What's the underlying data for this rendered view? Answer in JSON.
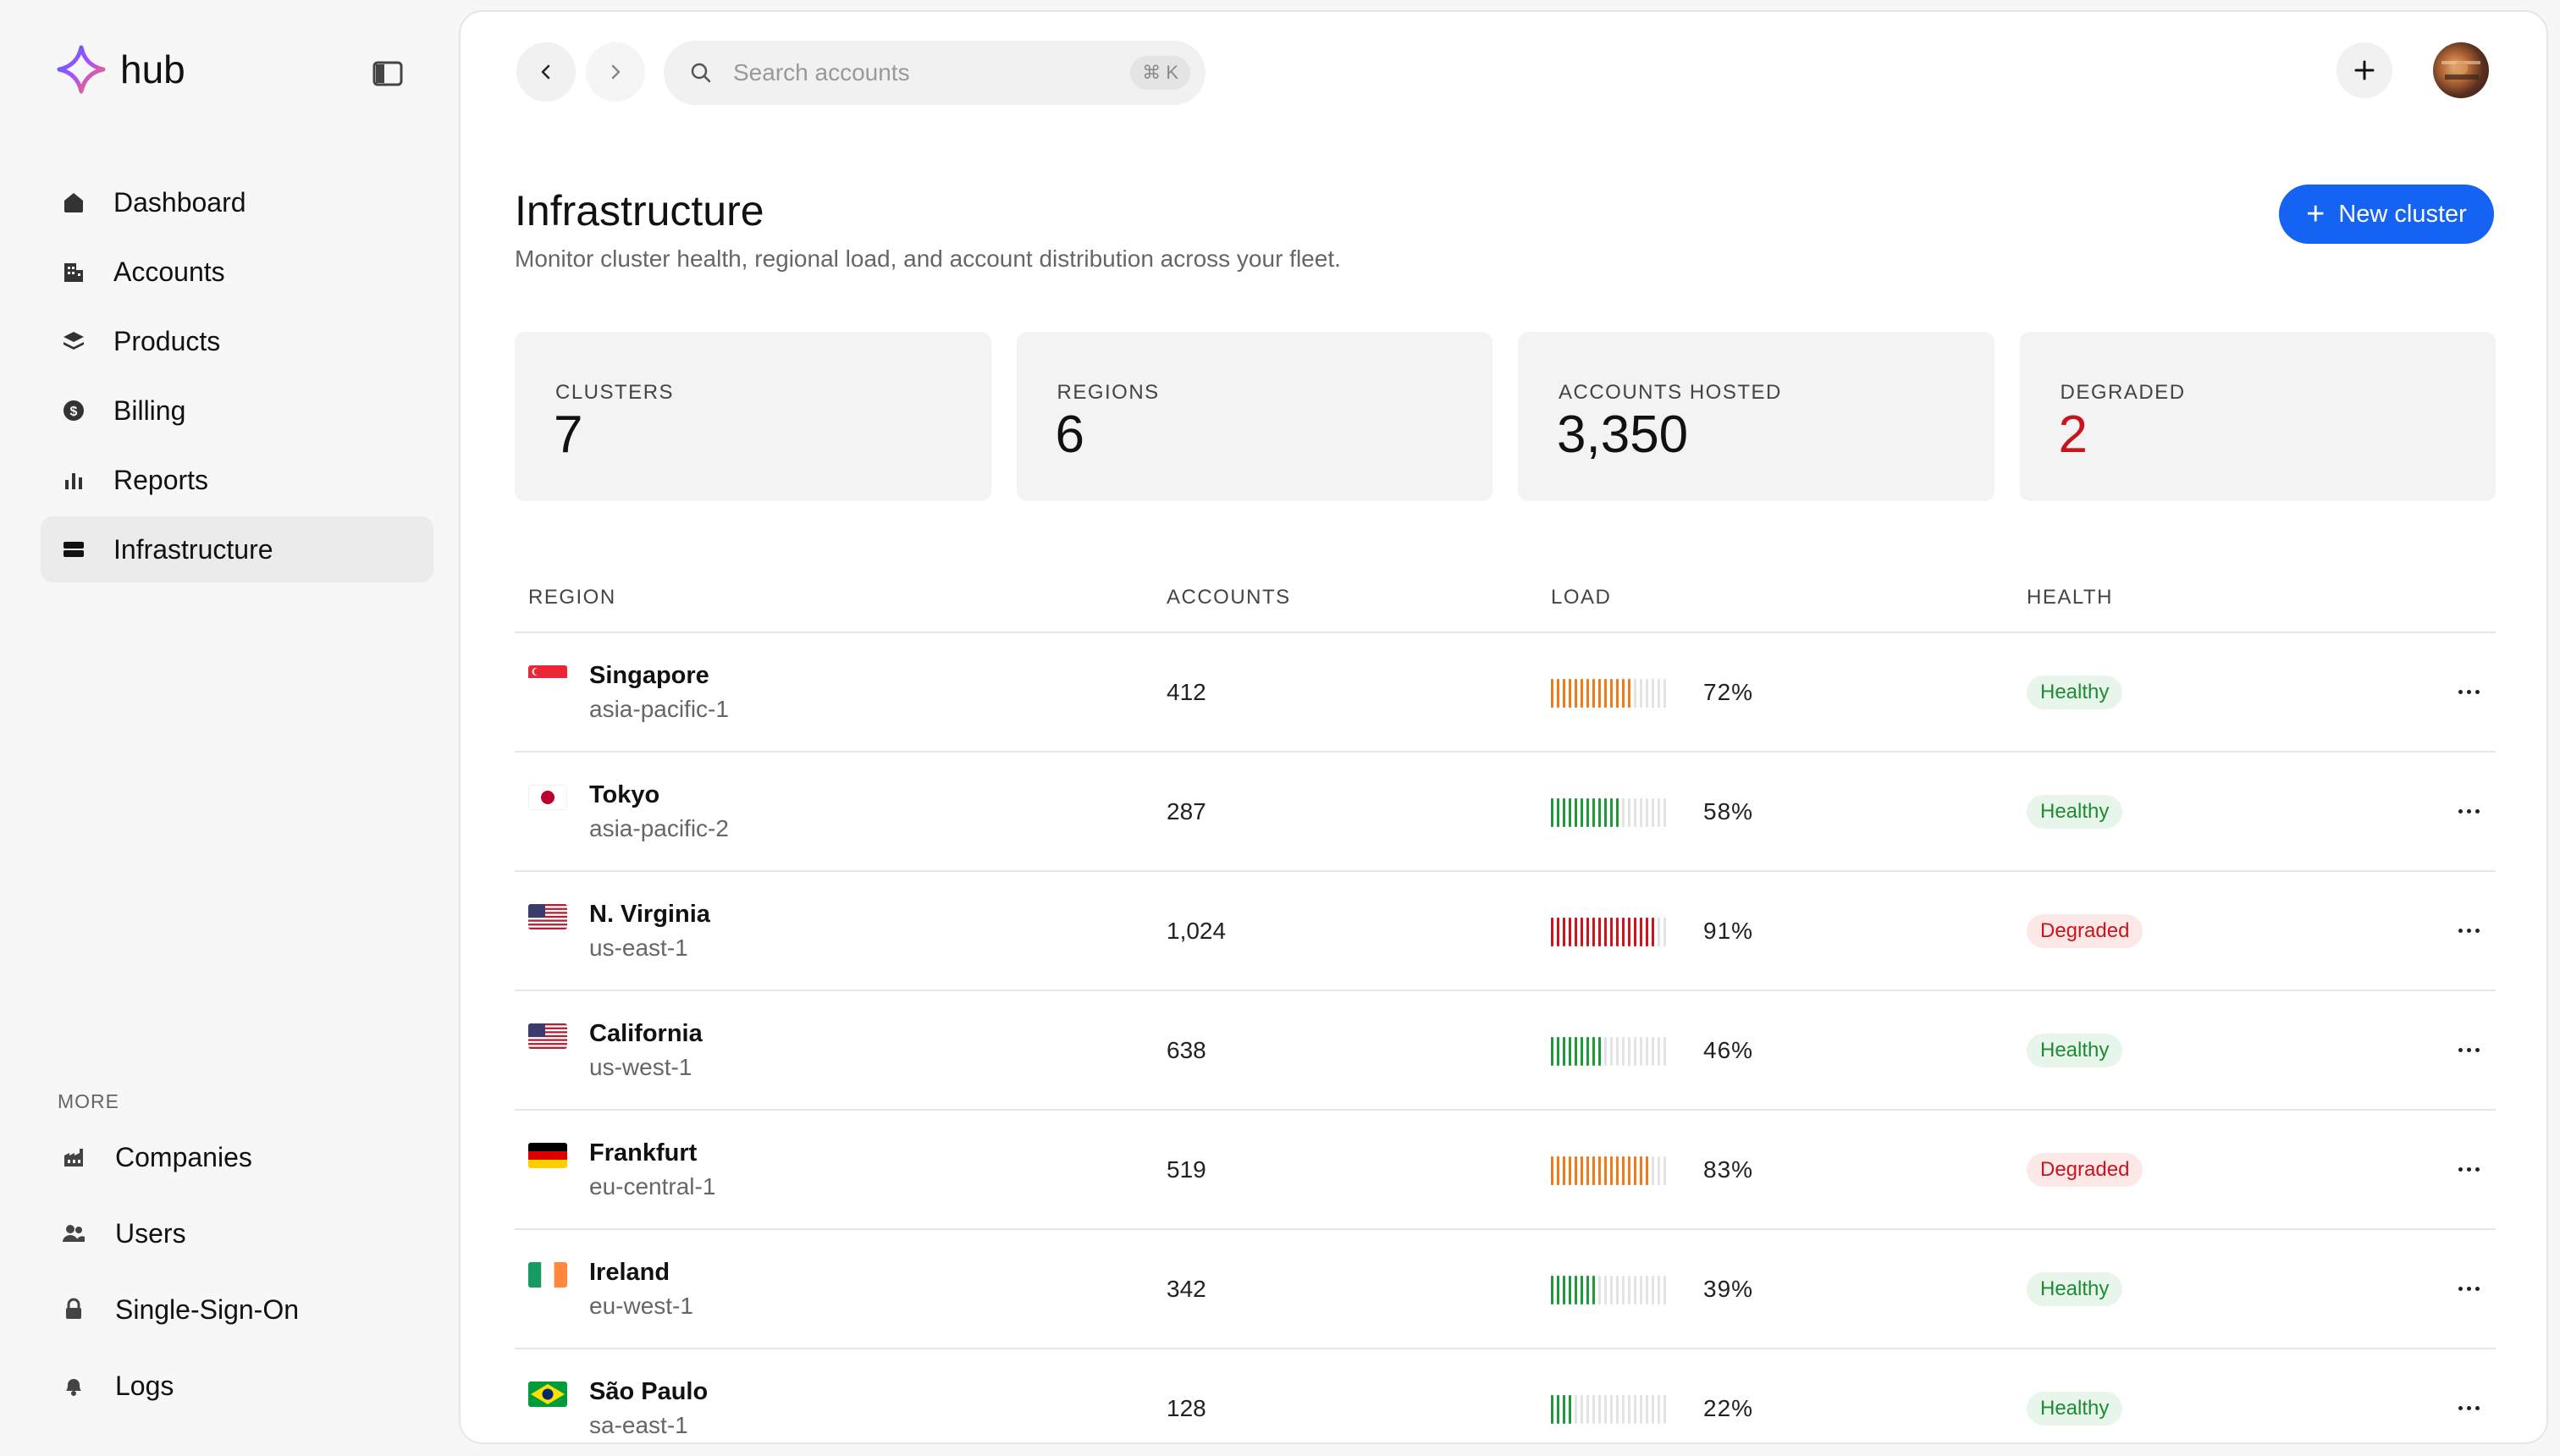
{
  "app": {
    "name": "hub"
  },
  "sidebar": {
    "items": [
      {
        "label": "Dashboard",
        "icon": "home-icon",
        "active": false
      },
      {
        "label": "Accounts",
        "icon": "building-icon",
        "active": false
      },
      {
        "label": "Products",
        "icon": "layers-icon",
        "active": false
      },
      {
        "label": "Billing",
        "icon": "dollar-icon",
        "active": false
      },
      {
        "label": "Reports",
        "icon": "bar-chart-icon",
        "active": false
      },
      {
        "label": "Infrastructure",
        "icon": "server-icon",
        "active": true
      }
    ],
    "more_label": "MORE",
    "more_items": [
      {
        "label": "Companies",
        "icon": "factory-icon"
      },
      {
        "label": "Users",
        "icon": "users-icon"
      },
      {
        "label": "Single-Sign-On",
        "icon": "lock-icon"
      },
      {
        "label": "Logs",
        "icon": "bell-icon"
      }
    ]
  },
  "topbar": {
    "search_placeholder": "Search accounts",
    "shortcut": "⌘ K"
  },
  "page": {
    "title": "Infrastructure",
    "subtitle": "Monitor cluster health, regional load, and account distribution across your fleet.",
    "new_button": "New cluster"
  },
  "stats": [
    {
      "label": "CLUSTERS",
      "value": "7"
    },
    {
      "label": "REGIONS",
      "value": "6"
    },
    {
      "label": "ACCOUNTS HOSTED",
      "value": "3,350"
    },
    {
      "label": "DEGRADED",
      "value": "2"
    }
  ],
  "table": {
    "headers": {
      "region": "REGION",
      "accounts": "ACCOUNTS",
      "load": "LOAD",
      "health": "HEALTH"
    },
    "rows": [
      {
        "name": "Singapore",
        "code": "asia-pacific-1",
        "flag": "sg",
        "accounts": "412",
        "load": 72,
        "load_label": "72%",
        "bar_color": "#f07a1a",
        "health": "Healthy"
      },
      {
        "name": "Tokyo",
        "code": "asia-pacific-2",
        "flag": "jp",
        "accounts": "287",
        "load": 58,
        "load_label": "58%",
        "bar_color": "#1f9a3a",
        "health": "Healthy"
      },
      {
        "name": "N. Virginia",
        "code": "us-east-1",
        "flag": "us",
        "accounts": "1,024",
        "load": 91,
        "load_label": "91%",
        "bar_color": "#d0121c",
        "health": "Degraded"
      },
      {
        "name": "California",
        "code": "us-west-1",
        "flag": "us",
        "accounts": "638",
        "load": 46,
        "load_label": "46%",
        "bar_color": "#1f9a3a",
        "health": "Healthy"
      },
      {
        "name": "Frankfurt",
        "code": "eu-central-1",
        "flag": "de",
        "accounts": "519",
        "load": 83,
        "load_label": "83%",
        "bar_color": "#f07a1a",
        "health": "Degraded"
      },
      {
        "name": "Ireland",
        "code": "eu-west-1",
        "flag": "ie",
        "accounts": "342",
        "load": 39,
        "load_label": "39%",
        "bar_color": "#1f9a3a",
        "health": "Healthy"
      },
      {
        "name": "São Paulo",
        "code": "sa-east-1",
        "flag": "br",
        "accounts": "128",
        "load": 22,
        "load_label": "22%",
        "bar_color": "#1f9a3a",
        "health": "Healthy"
      }
    ]
  },
  "colors": {
    "accent": "#1463f3",
    "healthy": "#1c8b33",
    "degraded": "#c8141c"
  }
}
